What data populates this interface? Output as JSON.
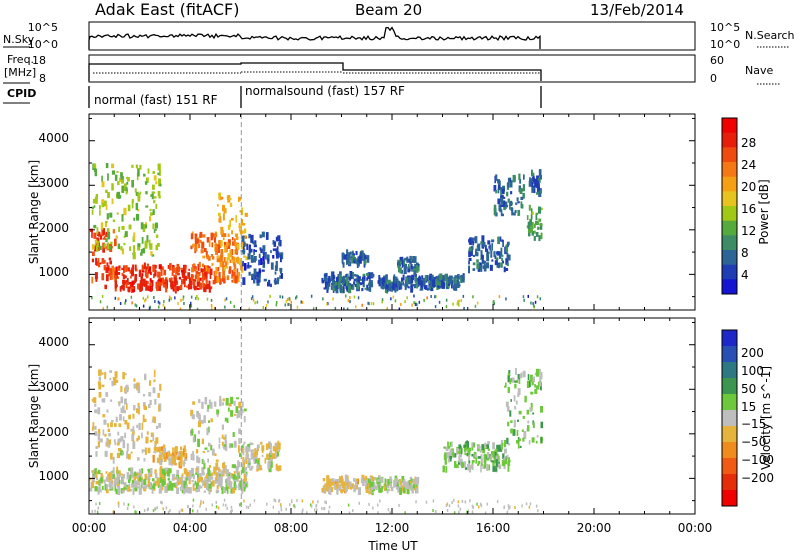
{
  "header": {
    "title": "Adak East (fitACF)",
    "beam": "Beam 20",
    "date": "13/Feb/2014"
  },
  "status_panels": {
    "nsky_label": "N.Sky",
    "nsky_ticks": [
      "10^5",
      "10^0"
    ],
    "nsearch_label": "N.Search",
    "nsearch_ticks": [
      "10^5",
      "10^0"
    ],
    "freq_label_1": "Freq.",
    "freq_label_2": "[MHz]",
    "freq_ticks": [
      "18",
      "8"
    ],
    "nave_label": "Nave",
    "nave_ticks": [
      "60",
      "0"
    ],
    "cpid_label": "CPID",
    "cpid_1": "normal (fast) 151 RF",
    "cpid_2": "normalsound (fast) 157 RF"
  },
  "colors": {
    "frame": "#000000",
    "divider": "#999999",
    "power_scale": [
      "#1414d2",
      "#1e3cb4",
      "#2d6496",
      "#3c8c64",
      "#55aa3c",
      "#a0c814",
      "#e6c31e",
      "#f5a014",
      "#f57814",
      "#f04b0f",
      "#e61e0a",
      "#f00000"
    ],
    "velocity_scale": [
      "#1e28c8",
      "#2850b4",
      "#2d7882",
      "#3c9650",
      "#6ec83c",
      "#bebebe",
      "#e6b43c",
      "#f08c1e",
      "#f05a14",
      "#e62d0a",
      "#f00000"
    ]
  },
  "chart_data": [
    {
      "type": "heatmap",
      "name": "power",
      "ylabel": "Slant Range [km]",
      "xlabel": "",
      "x_range_hours": [
        0,
        24
      ],
      "ylim": [
        200,
        4600
      ],
      "y_ticks": [
        "1000",
        "2000",
        "3000",
        "4000"
      ],
      "colorbar_label": "Power [dB]",
      "colorbar_ticks": [
        "4",
        "8",
        "12",
        "16",
        "20",
        "24",
        "28"
      ],
      "colorbar_range": [
        0,
        32
      ],
      "regions": [
        {
          "start": 0.0,
          "end": 1.0,
          "lo": 700,
          "hi": 2000,
          "value": 26
        },
        {
          "start": 0.1,
          "end": 2.8,
          "lo": 1400,
          "hi": 3500,
          "value": 14
        },
        {
          "start": 1.0,
          "end": 4.8,
          "lo": 650,
          "hi": 1200,
          "value": 27
        },
        {
          "start": 4.0,
          "end": 5.9,
          "lo": 800,
          "hi": 1900,
          "value": 23
        },
        {
          "start": 5.0,
          "end": 6.2,
          "lo": 1000,
          "hi": 2800,
          "value": 20
        },
        {
          "start": 6.0,
          "end": 7.6,
          "lo": 750,
          "hi": 1900,
          "value": 5
        },
        {
          "start": 9.2,
          "end": 11.2,
          "lo": 650,
          "hi": 1000,
          "value": 6
        },
        {
          "start": 10.0,
          "end": 11.0,
          "lo": 1200,
          "hi": 1500,
          "value": 6
        },
        {
          "start": 11.4,
          "end": 13.6,
          "lo": 650,
          "hi": 950,
          "value": 6
        },
        {
          "start": 12.2,
          "end": 13.0,
          "lo": 1050,
          "hi": 1350,
          "value": 7
        },
        {
          "start": 13.5,
          "end": 14.8,
          "lo": 700,
          "hi": 950,
          "value": 7
        },
        {
          "start": 15.0,
          "end": 16.6,
          "lo": 1100,
          "hi": 1800,
          "value": 6
        },
        {
          "start": 16.0,
          "end": 17.2,
          "lo": 2300,
          "hi": 3200,
          "value": 7
        },
        {
          "start": 17.3,
          "end": 17.9,
          "lo": 1800,
          "hi": 2500,
          "value": 11
        },
        {
          "start": 17.4,
          "end": 17.9,
          "lo": 2800,
          "hi": 3300,
          "value": 6
        }
      ]
    },
    {
      "type": "heatmap",
      "name": "velocity",
      "ylabel": "Slant Range [km]",
      "xlabel": "Time UT",
      "x_range_hours": [
        0,
        24
      ],
      "x_ticks": [
        "00:00",
        "04:00",
        "08:00",
        "12:00",
        "16:00",
        "20:00",
        "00:00"
      ],
      "ylim": [
        200,
        4600
      ],
      "y_ticks": [
        "1000",
        "2000",
        "3000",
        "4000"
      ],
      "colorbar_label": "Velocity [m s^-1]",
      "colorbar_ticks": [
        "200",
        "100",
        "50",
        "15",
        "−15",
        "−50",
        "−100",
        "−200"
      ],
      "colorbar_range": [
        -250,
        250
      ],
      "regions": [
        {
          "start": 0.0,
          "end": 6.2,
          "lo": 700,
          "hi": 1200,
          "value": 0
        },
        {
          "start": 0.1,
          "end": 2.8,
          "lo": 1400,
          "hi": 3400,
          "value": -20
        },
        {
          "start": 4.0,
          "end": 6.2,
          "lo": 800,
          "hi": 2800,
          "value": 5
        },
        {
          "start": 2.5,
          "end": 3.8,
          "lo": 1300,
          "hi": 1700,
          "value": -40
        },
        {
          "start": 6.0,
          "end": 7.6,
          "lo": 1200,
          "hi": 1800,
          "value": -5
        },
        {
          "start": 9.2,
          "end": 11.2,
          "lo": 700,
          "hi": 1000,
          "value": -30
        },
        {
          "start": 11.0,
          "end": 13.0,
          "lo": 700,
          "hi": 1000,
          "value": 10
        },
        {
          "start": 14.0,
          "end": 16.6,
          "lo": 1200,
          "hi": 1800,
          "value": 40
        },
        {
          "start": 16.4,
          "end": 17.9,
          "lo": 1700,
          "hi": 3400,
          "value": 45
        }
      ]
    }
  ]
}
